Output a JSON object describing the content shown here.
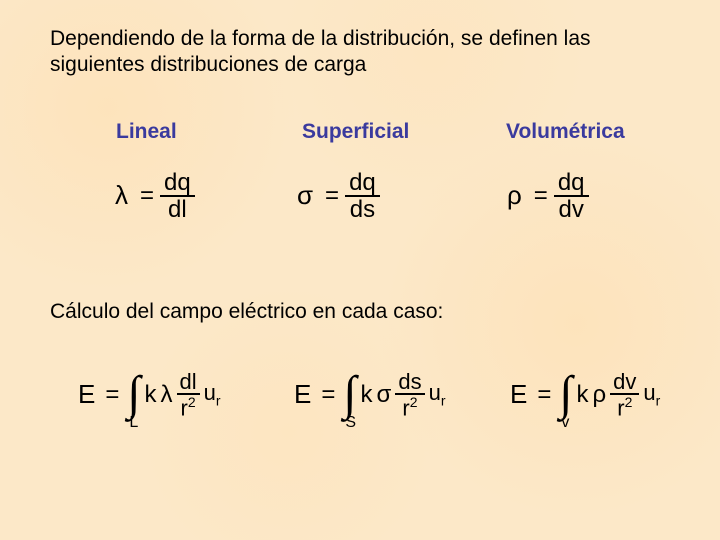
{
  "background_color": "#fce8c8",
  "text_color": "#000000",
  "header_color": "#3a3a9e",
  "body_fontsize": 21,
  "eq_fontsize": 24,
  "intro_text": "Dependiendo de la forma de la distribución, se definen las siguientes distribuciones de carga",
  "columns": {
    "lineal": {
      "header": "Lineal",
      "density": {
        "symbol": "λ",
        "numerator": "dq",
        "denominator": "dl"
      },
      "integral": {
        "domain": "L",
        "weight": "λ",
        "diff": "dl"
      }
    },
    "superficial": {
      "header": "Superficial",
      "density": {
        "symbol": "σ",
        "numerator": "dq",
        "denominator": "ds"
      },
      "integral": {
        "domain": "S",
        "weight": "σ",
        "diff": "ds"
      }
    },
    "volumetrica": {
      "header": "Volumétrica",
      "density": {
        "symbol": "ρ",
        "numerator": "dq",
        "denominator": "dv"
      },
      "integral": {
        "domain": "v",
        "weight": "ρ",
        "diff": "dv"
      }
    }
  },
  "calc_title": "Cálculo del campo eléctrico en cada caso:",
  "common": {
    "equals": "=",
    "k": "k",
    "E": "E",
    "u": "u",
    "r": "r",
    "sup2": "2",
    "sub_r": "r"
  }
}
